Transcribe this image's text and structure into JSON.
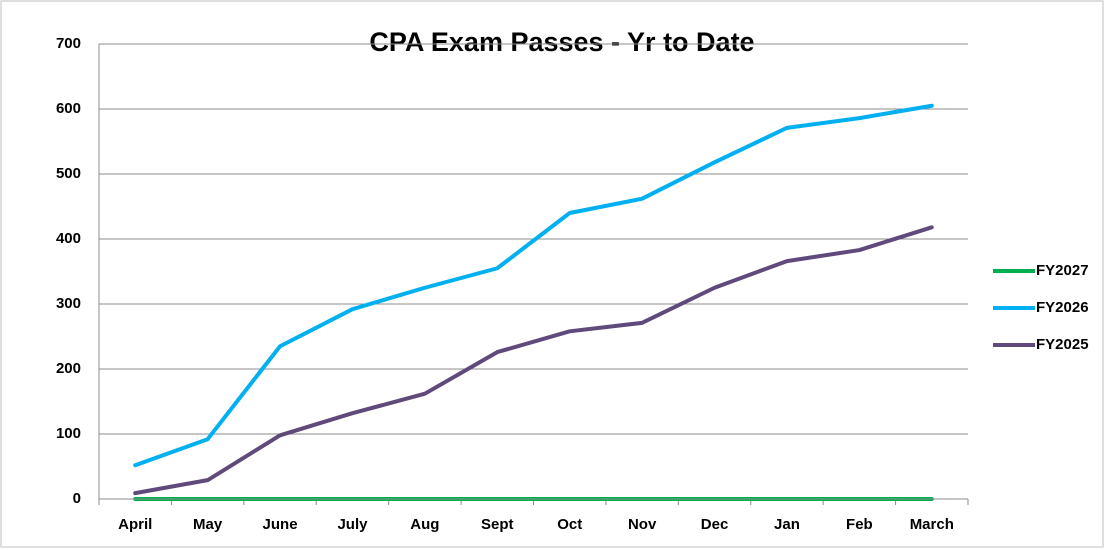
{
  "chart_data": {
    "type": "line",
    "title": "CPA Exam Passes  - Yr to Date",
    "categories": [
      "April",
      "May",
      "June",
      "July",
      "Aug",
      "Sept",
      "Oct",
      "Nov",
      "Dec",
      "Jan",
      "Feb",
      "March"
    ],
    "series": [
      {
        "name": "FY2027",
        "color": "#00b050",
        "values": [
          0,
          0,
          0,
          0,
          0,
          0,
          0,
          0,
          0,
          0,
          0,
          0
        ]
      },
      {
        "name": "FY2026",
        "color": "#00b0f0",
        "values": [
          52,
          92,
          235,
          292,
          325,
          355,
          440,
          462,
          518,
          571,
          586,
          605
        ]
      },
      {
        "name": "FY2025",
        "color": "#604a7b",
        "values": [
          9,
          29,
          98,
          132,
          162,
          226,
          258,
          271,
          325,
          366,
          383,
          418
        ]
      }
    ],
    "ylim": [
      0,
      700
    ],
    "yticks": [
      0,
      100,
      200,
      300,
      400,
      500,
      600,
      700
    ],
    "grid": true,
    "legend": "right"
  }
}
